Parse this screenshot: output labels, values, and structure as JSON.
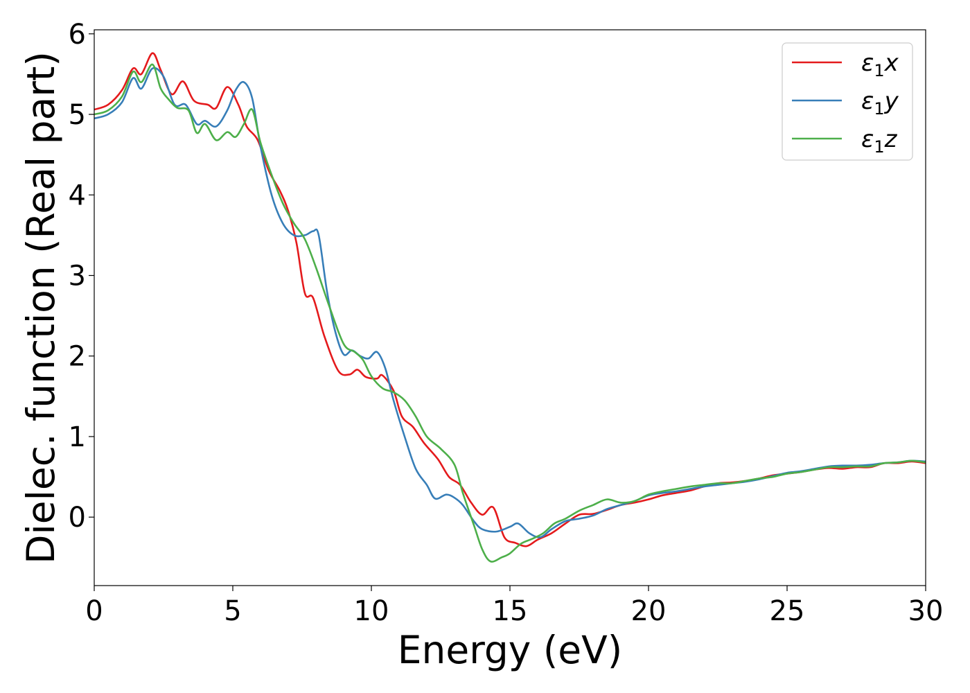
{
  "chart_data": {
    "type": "line",
    "xlabel": "Energy (eV)",
    "ylabel": "Dielec. function (Real part)",
    "xlim": [
      0,
      30
    ],
    "ylim": [
      -0.85,
      6.05
    ],
    "xticks": [
      0,
      5,
      10,
      15,
      20,
      25,
      30
    ],
    "yticks": [
      0,
      1,
      2,
      3,
      4,
      5,
      6
    ],
    "grid": false,
    "legend_position": "top-right",
    "colors": {
      "x": "#e41a1c",
      "y": "#377eb8",
      "z": "#4daf4a"
    },
    "series": [
      {
        "name": "ε1x",
        "legend_base": "ε",
        "legend_sub": "1",
        "legend_var": "x",
        "color": "#e41a1c",
        "points": [
          [
            0,
            5.06
          ],
          [
            0.5,
            5.12
          ],
          [
            1.0,
            5.3
          ],
          [
            1.4,
            5.57
          ],
          [
            1.7,
            5.5
          ],
          [
            2.1,
            5.76
          ],
          [
            2.4,
            5.55
          ],
          [
            2.8,
            5.25
          ],
          [
            3.2,
            5.41
          ],
          [
            3.6,
            5.17
          ],
          [
            4.1,
            5.12
          ],
          [
            4.4,
            5.08
          ],
          [
            4.8,
            5.34
          ],
          [
            5.2,
            5.12
          ],
          [
            5.5,
            4.85
          ],
          [
            5.9,
            4.68
          ],
          [
            6.3,
            4.3
          ],
          [
            6.7,
            4.05
          ],
          [
            7.0,
            3.8
          ],
          [
            7.3,
            3.4
          ],
          [
            7.6,
            2.78
          ],
          [
            7.9,
            2.72
          ],
          [
            8.3,
            2.25
          ],
          [
            8.8,
            1.82
          ],
          [
            9.2,
            1.77
          ],
          [
            9.5,
            1.83
          ],
          [
            9.8,
            1.74
          ],
          [
            10.2,
            1.72
          ],
          [
            10.4,
            1.76
          ],
          [
            10.8,
            1.57
          ],
          [
            11.1,
            1.25
          ],
          [
            11.5,
            1.12
          ],
          [
            11.9,
            0.92
          ],
          [
            12.4,
            0.72
          ],
          [
            12.8,
            0.5
          ],
          [
            13.2,
            0.4
          ],
          [
            13.6,
            0.18
          ],
          [
            14.0,
            0.03
          ],
          [
            14.4,
            0.12
          ],
          [
            14.8,
            -0.25
          ],
          [
            15.2,
            -0.32
          ],
          [
            15.6,
            -0.36
          ],
          [
            16.0,
            -0.28
          ],
          [
            16.5,
            -0.2
          ],
          [
            17.0,
            -0.08
          ],
          [
            17.5,
            0.03
          ],
          [
            18.0,
            0.04
          ],
          [
            18.5,
            0.09
          ],
          [
            19.0,
            0.15
          ],
          [
            19.5,
            0.18
          ],
          [
            20.0,
            0.22
          ],
          [
            20.5,
            0.27
          ],
          [
            21.0,
            0.3
          ],
          [
            21.5,
            0.33
          ],
          [
            22.0,
            0.38
          ],
          [
            22.5,
            0.42
          ],
          [
            23.0,
            0.43
          ],
          [
            23.5,
            0.45
          ],
          [
            24.0,
            0.48
          ],
          [
            24.5,
            0.52
          ],
          [
            25.0,
            0.54
          ],
          [
            25.5,
            0.56
          ],
          [
            26.0,
            0.59
          ],
          [
            26.5,
            0.61
          ],
          [
            27.0,
            0.6
          ],
          [
            27.5,
            0.62
          ],
          [
            28.0,
            0.62
          ],
          [
            28.5,
            0.67
          ],
          [
            29.0,
            0.67
          ],
          [
            29.5,
            0.69
          ],
          [
            30.0,
            0.67
          ]
        ]
      },
      {
        "name": "ε1y",
        "legend_base": "ε",
        "legend_sub": "1",
        "legend_var": "y",
        "color": "#377eb8",
        "points": [
          [
            0,
            4.95
          ],
          [
            0.5,
            5.0
          ],
          [
            1.0,
            5.15
          ],
          [
            1.4,
            5.45
          ],
          [
            1.7,
            5.32
          ],
          [
            2.1,
            5.57
          ],
          [
            2.5,
            5.47
          ],
          [
            2.9,
            5.12
          ],
          [
            3.3,
            5.12
          ],
          [
            3.7,
            4.88
          ],
          [
            4.0,
            4.92
          ],
          [
            4.4,
            4.85
          ],
          [
            4.8,
            5.05
          ],
          [
            5.1,
            5.3
          ],
          [
            5.4,
            5.4
          ],
          [
            5.7,
            5.2
          ],
          [
            6.0,
            4.6
          ],
          [
            6.4,
            4.0
          ],
          [
            6.8,
            3.65
          ],
          [
            7.2,
            3.5
          ],
          [
            7.6,
            3.5
          ],
          [
            7.9,
            3.55
          ],
          [
            8.1,
            3.5
          ],
          [
            8.4,
            2.8
          ],
          [
            8.7,
            2.3
          ],
          [
            9.0,
            2.02
          ],
          [
            9.3,
            2.07
          ],
          [
            9.6,
            2.0
          ],
          [
            9.9,
            1.97
          ],
          [
            10.2,
            2.05
          ],
          [
            10.5,
            1.85
          ],
          [
            10.8,
            1.45
          ],
          [
            11.2,
            1.0
          ],
          [
            11.6,
            0.6
          ],
          [
            12.0,
            0.4
          ],
          [
            12.3,
            0.23
          ],
          [
            12.7,
            0.28
          ],
          [
            13.0,
            0.24
          ],
          [
            13.3,
            0.15
          ],
          [
            13.7,
            -0.05
          ],
          [
            14.0,
            -0.15
          ],
          [
            14.5,
            -0.18
          ],
          [
            15.0,
            -0.12
          ],
          [
            15.3,
            -0.08
          ],
          [
            15.7,
            -0.2
          ],
          [
            16.1,
            -0.25
          ],
          [
            16.5,
            -0.15
          ],
          [
            17.0,
            -0.05
          ],
          [
            17.5,
            -0.02
          ],
          [
            18.0,
            0.02
          ],
          [
            18.5,
            0.1
          ],
          [
            19.0,
            0.15
          ],
          [
            19.5,
            0.2
          ],
          [
            20.0,
            0.27
          ],
          [
            20.5,
            0.3
          ],
          [
            21.0,
            0.32
          ],
          [
            21.5,
            0.35
          ],
          [
            22.0,
            0.38
          ],
          [
            22.5,
            0.4
          ],
          [
            23.0,
            0.42
          ],
          [
            23.5,
            0.44
          ],
          [
            24.0,
            0.47
          ],
          [
            24.5,
            0.51
          ],
          [
            25.0,
            0.55
          ],
          [
            25.5,
            0.57
          ],
          [
            26.0,
            0.6
          ],
          [
            26.5,
            0.63
          ],
          [
            27.0,
            0.64
          ],
          [
            27.5,
            0.64
          ],
          [
            28.0,
            0.65
          ],
          [
            28.5,
            0.67
          ],
          [
            29.0,
            0.68
          ],
          [
            29.5,
            0.7
          ],
          [
            30.0,
            0.69
          ]
        ]
      },
      {
        "name": "ε1z",
        "legend_base": "ε",
        "legend_sub": "1",
        "legend_var": "z",
        "color": "#4daf4a",
        "points": [
          [
            0,
            5.0
          ],
          [
            0.5,
            5.05
          ],
          [
            1.0,
            5.22
          ],
          [
            1.4,
            5.53
          ],
          [
            1.7,
            5.4
          ],
          [
            2.1,
            5.62
          ],
          [
            2.4,
            5.32
          ],
          [
            2.7,
            5.18
          ],
          [
            3.0,
            5.08
          ],
          [
            3.4,
            5.05
          ],
          [
            3.7,
            4.77
          ],
          [
            4.0,
            4.88
          ],
          [
            4.4,
            4.68
          ],
          [
            4.8,
            4.78
          ],
          [
            5.1,
            4.72
          ],
          [
            5.4,
            4.88
          ],
          [
            5.7,
            5.06
          ],
          [
            6.0,
            4.65
          ],
          [
            6.4,
            4.25
          ],
          [
            6.8,
            3.9
          ],
          [
            7.2,
            3.65
          ],
          [
            7.6,
            3.45
          ],
          [
            8.0,
            3.1
          ],
          [
            8.5,
            2.6
          ],
          [
            9.0,
            2.15
          ],
          [
            9.4,
            2.05
          ],
          [
            9.7,
            1.95
          ],
          [
            10.0,
            1.75
          ],
          [
            10.4,
            1.6
          ],
          [
            10.8,
            1.55
          ],
          [
            11.2,
            1.45
          ],
          [
            11.6,
            1.25
          ],
          [
            12.0,
            1.0
          ],
          [
            12.5,
            0.85
          ],
          [
            13.0,
            0.65
          ],
          [
            13.3,
            0.3
          ],
          [
            13.7,
            -0.1
          ],
          [
            14.0,
            -0.4
          ],
          [
            14.3,
            -0.55
          ],
          [
            14.7,
            -0.5
          ],
          [
            15.0,
            -0.45
          ],
          [
            15.4,
            -0.33
          ],
          [
            15.8,
            -0.27
          ],
          [
            16.2,
            -0.2
          ],
          [
            16.6,
            -0.08
          ],
          [
            17.0,
            -0.02
          ],
          [
            17.5,
            0.08
          ],
          [
            18.0,
            0.15
          ],
          [
            18.5,
            0.22
          ],
          [
            19.0,
            0.18
          ],
          [
            19.5,
            0.2
          ],
          [
            20.0,
            0.28
          ],
          [
            20.5,
            0.32
          ],
          [
            21.0,
            0.35
          ],
          [
            21.5,
            0.38
          ],
          [
            22.0,
            0.4
          ],
          [
            22.5,
            0.42
          ],
          [
            23.0,
            0.42
          ],
          [
            23.5,
            0.45
          ],
          [
            24.0,
            0.48
          ],
          [
            24.5,
            0.5
          ],
          [
            25.0,
            0.54
          ],
          [
            25.5,
            0.56
          ],
          [
            26.0,
            0.59
          ],
          [
            26.5,
            0.62
          ],
          [
            27.0,
            0.62
          ],
          [
            27.5,
            0.63
          ],
          [
            28.0,
            0.63
          ],
          [
            28.5,
            0.67
          ],
          [
            29.0,
            0.68
          ],
          [
            29.5,
            0.7
          ],
          [
            30.0,
            0.68
          ]
        ]
      }
    ]
  }
}
